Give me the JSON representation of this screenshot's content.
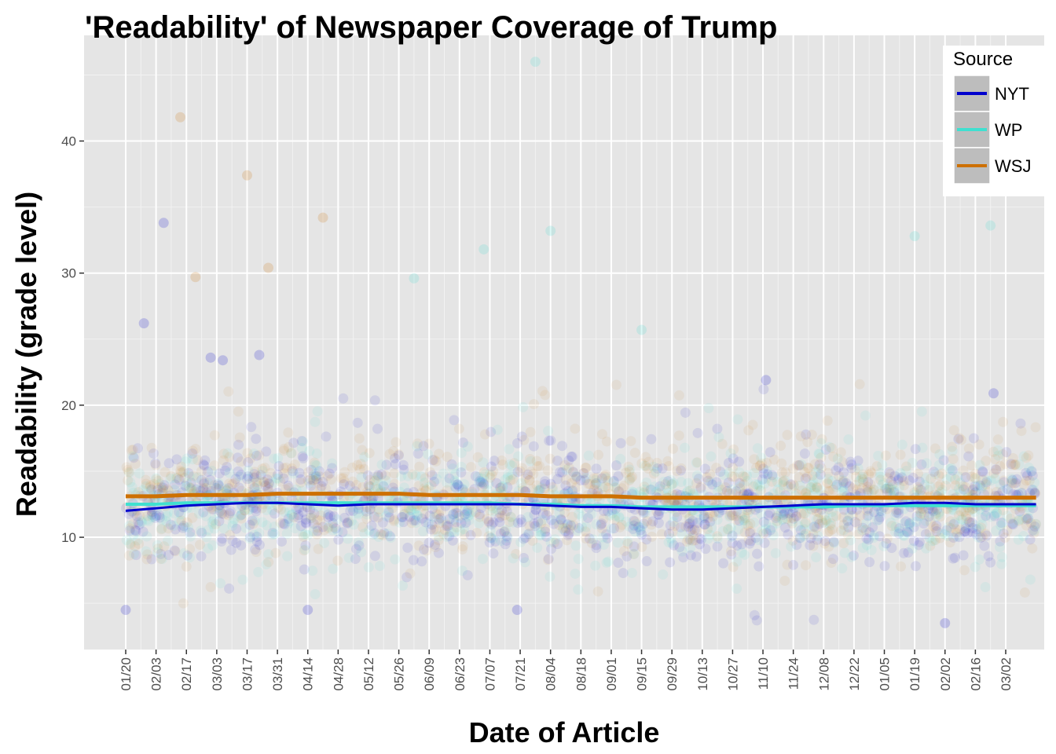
{
  "chart_data": {
    "type": "scatter",
    "title": "'Readability' of Newspaper Coverage of Trump",
    "xlabel": "Date of Article",
    "ylabel": "Readability (grade level)",
    "x_tick_labels": [
      "01/20",
      "02/03",
      "02/17",
      "03/03",
      "03/17",
      "03/31",
      "04/14",
      "04/28",
      "05/12",
      "05/26",
      "06/09",
      "06/23",
      "07/07",
      "07/21",
      "08/04",
      "08/18",
      "09/01",
      "09/15",
      "09/29",
      "10/13",
      "10/27",
      "11/10",
      "11/24",
      "12/08",
      "12/22",
      "01/05",
      "01/19",
      "02/02",
      "02/16",
      "03/02"
    ],
    "y_ticks": [
      10,
      20,
      30,
      40
    ],
    "ylim": [
      1.5,
      48
    ],
    "grid": true,
    "legend": {
      "title": "Source",
      "placement": "top-right"
    },
    "series": [
      {
        "name": "NYT",
        "color": "#0000cd",
        "trend": [
          12.0,
          12.2,
          12.4,
          12.5,
          12.6,
          12.6,
          12.5,
          12.4,
          12.5,
          12.5,
          12.5,
          12.5,
          12.5,
          12.5,
          12.4,
          12.3,
          12.3,
          12.2,
          12.1,
          12.1,
          12.2,
          12.3,
          12.4,
          12.5,
          12.5,
          12.5,
          12.6,
          12.6,
          12.5,
          12.5,
          12.5
        ]
      },
      {
        "name": "WP",
        "color": "#40e0d0",
        "trend": [
          12.5,
          12.5,
          12.6,
          12.6,
          12.6,
          12.6,
          12.6,
          12.6,
          12.6,
          12.6,
          12.6,
          12.6,
          12.6,
          12.5,
          12.5,
          12.4,
          12.4,
          12.3,
          12.3,
          12.3,
          12.3,
          12.3,
          12.3,
          12.3,
          12.4,
          12.4,
          12.4,
          12.4,
          12.4,
          12.4,
          12.4
        ]
      },
      {
        "name": "WSJ",
        "color": "#cd7000",
        "trend": [
          13.1,
          13.1,
          13.2,
          13.2,
          13.2,
          13.3,
          13.3,
          13.3,
          13.3,
          13.3,
          13.2,
          13.2,
          13.2,
          13.2,
          13.1,
          13.1,
          13.1,
          13.0,
          13.0,
          13.0,
          13.0,
          13.0,
          13.0,
          13.0,
          13.0,
          13.0,
          13.0,
          13.0,
          13.0,
          13.0,
          13.0
        ]
      }
    ],
    "highlighted_points": [
      {
        "series": "WP",
        "x": 13.5,
        "y": 46.0
      },
      {
        "series": "WSJ",
        "x": 1.8,
        "y": 41.8
      },
      {
        "series": "WSJ",
        "x": 4.0,
        "y": 37.4
      },
      {
        "series": "WSJ",
        "x": 6.5,
        "y": 34.2
      },
      {
        "series": "NYT",
        "x": 1.25,
        "y": 33.8
      },
      {
        "series": "WP",
        "x": 14.0,
        "y": 33.2
      },
      {
        "series": "WP",
        "x": 28.5,
        "y": 33.6
      },
      {
        "series": "WP",
        "x": 26.0,
        "y": 32.8
      },
      {
        "series": "WP",
        "x": 11.8,
        "y": 31.8
      },
      {
        "series": "WSJ",
        "x": 4.7,
        "y": 30.4
      },
      {
        "series": "WSJ",
        "x": 2.3,
        "y": 29.7
      },
      {
        "series": "WP",
        "x": 9.5,
        "y": 29.6
      },
      {
        "series": "NYT",
        "x": 0.6,
        "y": 26.2
      },
      {
        "series": "WP",
        "x": 17.0,
        "y": 25.7
      },
      {
        "series": "NYT",
        "x": 2.8,
        "y": 23.6
      },
      {
        "series": "NYT",
        "x": 4.4,
        "y": 23.8
      },
      {
        "series": "NYT",
        "x": 3.2,
        "y": 23.4
      },
      {
        "series": "NYT",
        "x": 21.1,
        "y": 21.9
      },
      {
        "series": "NYT",
        "x": 28.6,
        "y": 20.9
      },
      {
        "series": "NYT",
        "x": 27.0,
        "y": 3.5
      },
      {
        "series": "NYT",
        "x": 0.0,
        "y": 4.5
      },
      {
        "series": "NYT",
        "x": 6.0,
        "y": 4.5
      },
      {
        "series": "NYT",
        "x": 12.9,
        "y": 4.5
      }
    ]
  }
}
